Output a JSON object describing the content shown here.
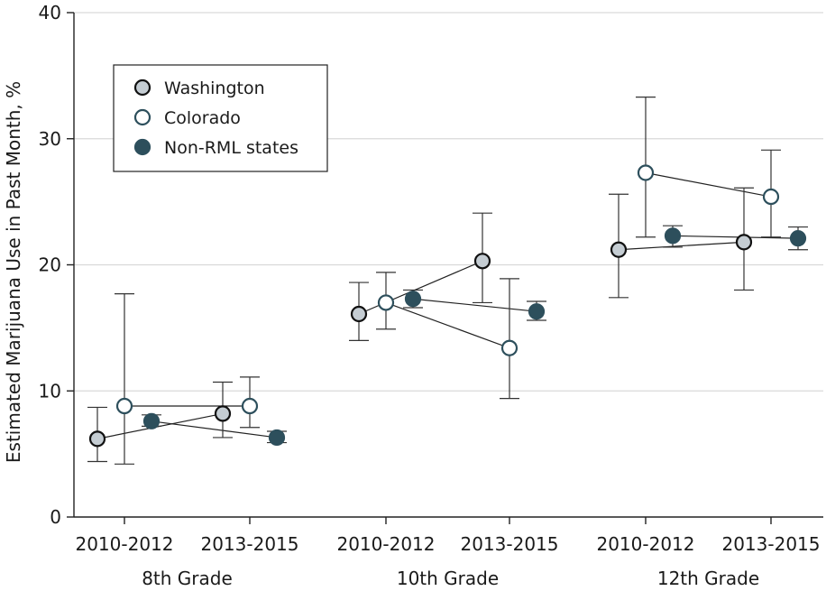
{
  "chart_data": {
    "type": "scatter",
    "ylabel": "Estimated Marijuana Use in Past Month, %",
    "ylim": [
      0,
      40
    ],
    "yticks": [
      0,
      10,
      20,
      30,
      40
    ],
    "grid": "horizontal",
    "legend_placement": "top-left",
    "groups": [
      {
        "label": "8th Grade",
        "periods": [
          "2010-2012",
          "2013-2015"
        ]
      },
      {
        "label": "10th Grade",
        "periods": [
          "2010-2012",
          "2013-2015"
        ]
      },
      {
        "label": "12th Grade",
        "periods": [
          "2010-2012",
          "2013-2015"
        ]
      }
    ],
    "series": [
      {
        "name": "Washington",
        "marker": "filled-light",
        "fill": "#c5cdd3",
        "stroke": "#111111",
        "values": [
          [
            {
              "v": 6.2,
              "lo": 4.4,
              "hi": 8.7
            },
            {
              "v": 8.2,
              "lo": 6.3,
              "hi": 10.7
            }
          ],
          [
            {
              "v": 16.1,
              "lo": 14.0,
              "hi": 18.6
            },
            {
              "v": 20.3,
              "lo": 17.0,
              "hi": 24.1
            }
          ],
          [
            {
              "v": 21.2,
              "lo": 17.4,
              "hi": 25.6
            },
            {
              "v": 21.8,
              "lo": 18.0,
              "hi": 26.1
            }
          ]
        ]
      },
      {
        "name": "Colorado",
        "marker": "open",
        "fill": "#ffffff",
        "stroke": "#2d4f5c",
        "values": [
          [
            {
              "v": 8.8,
              "lo": 4.2,
              "hi": 17.7
            },
            {
              "v": 8.8,
              "lo": 7.1,
              "hi": 11.1
            }
          ],
          [
            {
              "v": 17.0,
              "lo": 14.9,
              "hi": 19.4
            },
            {
              "v": 13.4,
              "lo": 9.4,
              "hi": 18.9
            }
          ],
          [
            {
              "v": 27.3,
              "lo": 22.2,
              "hi": 33.3
            },
            {
              "v": 25.4,
              "lo": 22.2,
              "hi": 29.1
            }
          ]
        ]
      },
      {
        "name": "Non-RML states",
        "marker": "filled-dark",
        "fill": "#2d4f5c",
        "stroke": "#2d4f5c",
        "values": [
          [
            {
              "v": 7.6,
              "lo": 7.2,
              "hi": 8.1
            },
            {
              "v": 6.3,
              "lo": 5.9,
              "hi": 6.8
            }
          ],
          [
            {
              "v": 17.3,
              "lo": 16.6,
              "hi": 18.0
            },
            {
              "v": 16.3,
              "lo": 15.6,
              "hi": 17.1
            }
          ],
          [
            {
              "v": 22.3,
              "lo": 21.4,
              "hi": 23.1
            },
            {
              "v": 22.1,
              "lo": 21.2,
              "hi": 23.0
            }
          ]
        ]
      }
    ]
  }
}
